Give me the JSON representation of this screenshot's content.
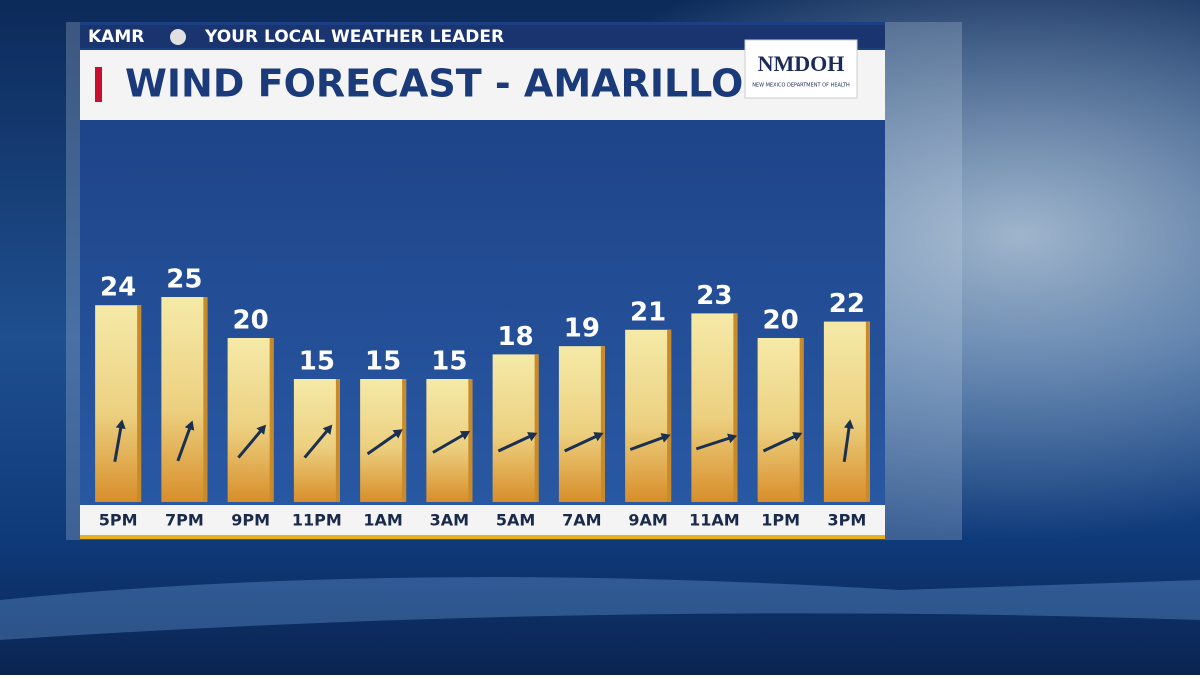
{
  "header": {
    "station": "KAMR",
    "tagline": "YOUR LOCAL WEATHER LEADER"
  },
  "logo": {
    "name": "NMDOH",
    "subtitle": "NEW MEXICO DEPARTMENT OF HEALTH"
  },
  "chart_data": {
    "type": "bar",
    "title": "WIND FORECAST - AMARILLO",
    "categories": [
      "5PM",
      "7PM",
      "9PM",
      "11PM",
      "1AM",
      "3AM",
      "5AM",
      "7AM",
      "9AM",
      "11AM",
      "1PM",
      "3PM"
    ],
    "values": [
      24,
      25,
      20,
      15,
      15,
      15,
      18,
      19,
      21,
      23,
      20,
      22
    ],
    "arrow_angles": [
      10,
      20,
      40,
      40,
      55,
      60,
      65,
      65,
      70,
      72,
      65,
      8
    ],
    "color": "#e8b64c"
  }
}
